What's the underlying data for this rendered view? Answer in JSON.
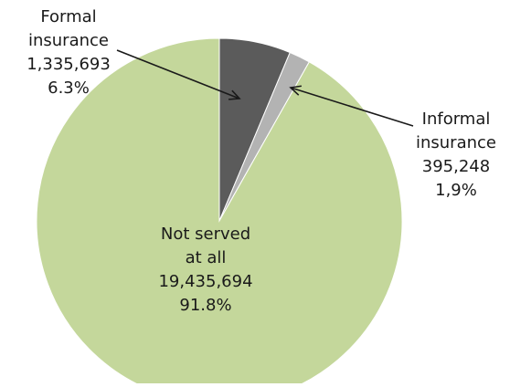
{
  "chart_data": {
    "type": "pie",
    "title": "",
    "slices": [
      {
        "label_lines": [
          "Formal",
          "insurance"
        ],
        "value_text": "1,335,693",
        "percent_text": "6.3%",
        "value": 1335693,
        "percent": 6.3,
        "color": "#5b5b5b"
      },
      {
        "label_lines": [
          "Informal",
          "insurance"
        ],
        "value_text": "395,248",
        "percent_text": "1,9%",
        "value": 395248,
        "percent": 1.9,
        "color": "#b3b3b3"
      },
      {
        "label_lines": [
          "Not served",
          "at all"
        ],
        "value_text": "19,435,694",
        "percent_text": "91.8%",
        "value": 19435694,
        "percent": 91.8,
        "color": "#c4d79b"
      }
    ],
    "legend": "none"
  }
}
